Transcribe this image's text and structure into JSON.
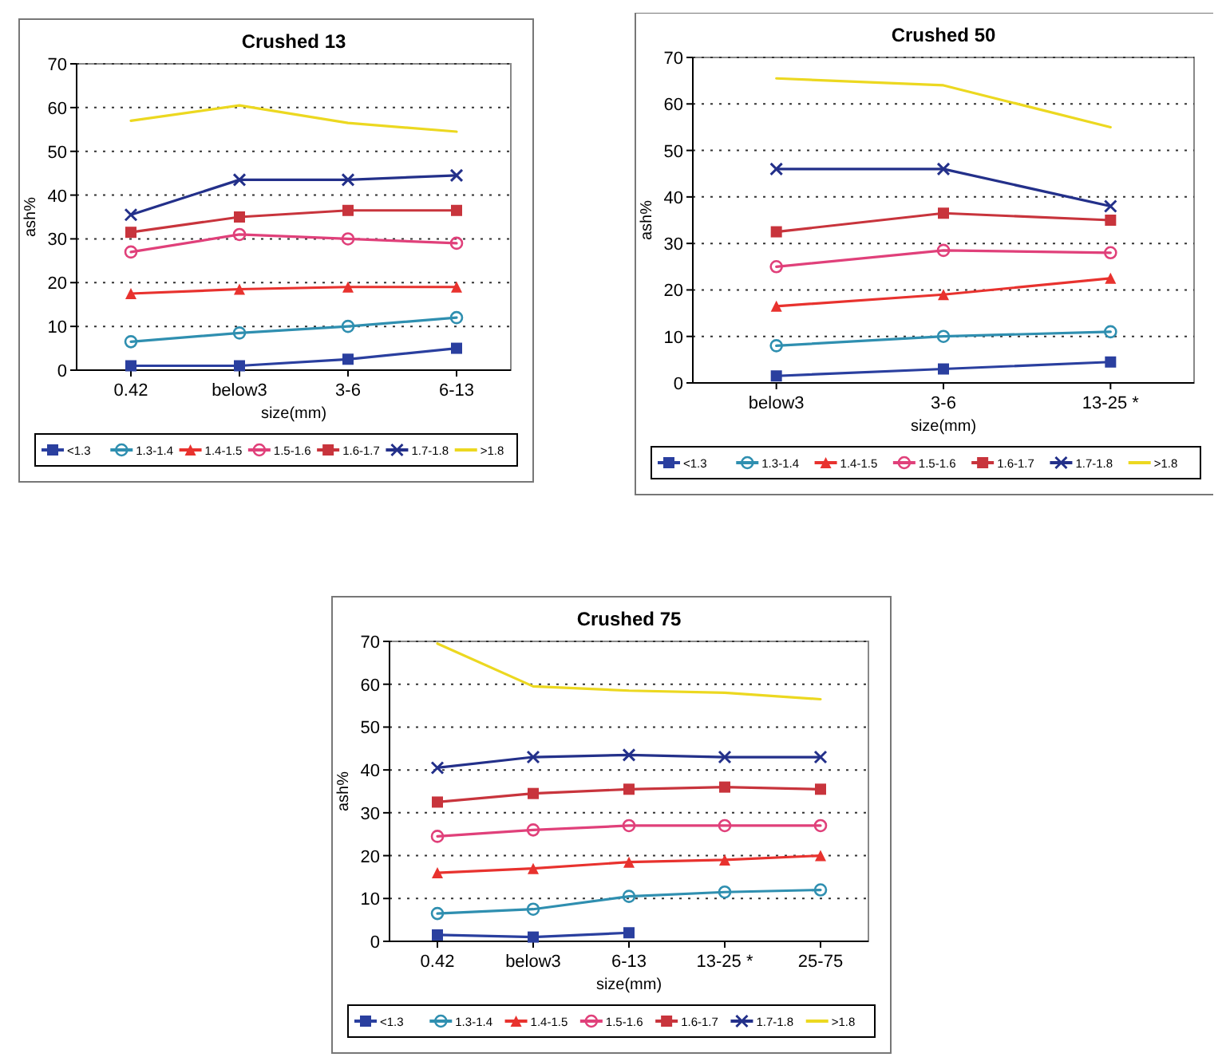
{
  "chart_data": [
    {
      "type": "line",
      "title": "Crushed 13",
      "xlabel": "size(mm)",
      "ylabel": "ash%",
      "categories": [
        "0.42",
        "below3",
        "3-6",
        "6-13"
      ],
      "ylim": [
        0,
        70
      ],
      "yticks": [
        0,
        10,
        20,
        30,
        40,
        50,
        60,
        70
      ],
      "grid": "y",
      "legend": "bottom",
      "series": [
        {
          "name": "<1.3",
          "color": "#2a3f9f",
          "marker": "square",
          "values": [
            1,
            1,
            2.5,
            5
          ]
        },
        {
          "name": "1.3-1.4",
          "color": "#2f8fb0",
          "marker": "circle",
          "values": [
            6.5,
            8.5,
            10,
            12
          ]
        },
        {
          "name": "1.4-1.5",
          "color": "#e8322e",
          "marker": "triangle",
          "values": [
            17.5,
            18.5,
            19,
            19
          ]
        },
        {
          "name": "1.5-1.6",
          "color": "#e0407a",
          "marker": "circle",
          "values": [
            27,
            31,
            30,
            29
          ]
        },
        {
          "name": "1.6-1.7",
          "color": "#c8343c",
          "marker": "square",
          "values": [
            31.5,
            35,
            36.5,
            36.5
          ]
        },
        {
          "name": "1.7-1.8",
          "color": "#23308a",
          "marker": "cross",
          "values": [
            35.5,
            43.5,
            43.5,
            44.5
          ]
        },
        {
          "name": ">1.8",
          "color": "#ecd820",
          "marker": "none",
          "values": [
            57,
            60.5,
            56.5,
            54.5
          ]
        }
      ]
    },
    {
      "type": "line",
      "title": "Crushed 50",
      "xlabel": "size(mm)",
      "ylabel": "ash%",
      "categories": [
        "below3",
        "3-6",
        "13-25 *"
      ],
      "ylim": [
        0,
        70
      ],
      "yticks": [
        0,
        10,
        20,
        30,
        40,
        50,
        60,
        70
      ],
      "grid": "y",
      "legend": "bottom",
      "series": [
        {
          "name": "<1.3",
          "color": "#2a3f9f",
          "marker": "square",
          "values": [
            1.5,
            3,
            4.5
          ]
        },
        {
          "name": "1.3-1.4",
          "color": "#2f8fb0",
          "marker": "circle",
          "values": [
            8,
            10,
            11
          ]
        },
        {
          "name": "1.4-1.5",
          "color": "#e8322e",
          "marker": "triangle",
          "values": [
            16.5,
            19,
            22.5
          ]
        },
        {
          "name": "1.5-1.6",
          "color": "#e0407a",
          "marker": "circle",
          "values": [
            25,
            28.5,
            28
          ]
        },
        {
          "name": "1.6-1.7",
          "color": "#c8343c",
          "marker": "square",
          "values": [
            32.5,
            36.5,
            35
          ]
        },
        {
          "name": "1.7-1.8",
          "color": "#23308a",
          "marker": "cross",
          "values": [
            46,
            46,
            38
          ]
        },
        {
          "name": ">1.8",
          "color": "#ecd820",
          "marker": "none",
          "values": [
            65.5,
            64,
            55
          ]
        }
      ]
    },
    {
      "type": "line",
      "title": "Crushed 75",
      "xlabel": "size(mm)",
      "ylabel": "ash%",
      "categories": [
        "0.42",
        "below3",
        "6-13",
        "13-25 *",
        "25-75"
      ],
      "ylim": [
        0,
        70
      ],
      "yticks": [
        0,
        10,
        20,
        30,
        40,
        50,
        60,
        70
      ],
      "grid": "y",
      "legend": "bottom",
      "series": [
        {
          "name": "<1.3",
          "color": "#2a3f9f",
          "marker": "square",
          "values": [
            1.5,
            1,
            2,
            null,
            null
          ]
        },
        {
          "name": "1.3-1.4",
          "color": "#2f8fb0",
          "marker": "circle",
          "values": [
            6.5,
            7.5,
            10.5,
            11.5,
            12
          ]
        },
        {
          "name": "1.4-1.5",
          "color": "#e8322e",
          "marker": "triangle",
          "values": [
            16,
            17,
            18.5,
            19,
            20
          ]
        },
        {
          "name": "1.5-1.6",
          "color": "#e0407a",
          "marker": "circle",
          "values": [
            24.5,
            26,
            27,
            27,
            27
          ]
        },
        {
          "name": "1.6-1.7",
          "color": "#c8343c",
          "marker": "square",
          "values": [
            32.5,
            34.5,
            35.5,
            36,
            35.5
          ]
        },
        {
          "name": "1.7-1.8",
          "color": "#23308a",
          "marker": "cross",
          "values": [
            40.5,
            43,
            43.5,
            43,
            43
          ]
        },
        {
          "name": ">1.8",
          "color": "#ecd820",
          "marker": "none",
          "values": [
            69.5,
            59.5,
            58.5,
            58,
            56.5
          ]
        }
      ]
    }
  ]
}
